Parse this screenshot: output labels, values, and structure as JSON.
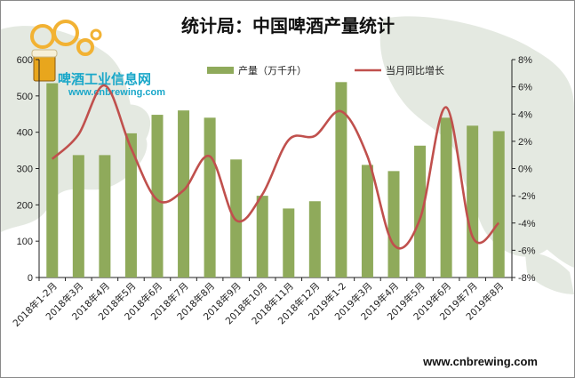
{
  "title": "统计局：中国啤酒产量统计",
  "logo": {
    "cn": "啤酒工业信息网",
    "en": "www.cnbrewing.com"
  },
  "website": "www.cnbrewing.com",
  "colors": {
    "bar": "#8faa5b",
    "line": "#c0504d",
    "map": "#e4e9e1"
  },
  "chart_data": {
    "type": "bar",
    "categories": [
      "2018年1-2月",
      "2018年3月",
      "2018年4月",
      "2018年5月",
      "2018年6月",
      "2018年7月",
      "2018年8月",
      "2018年9月",
      "2018年10月",
      "2018年11月",
      "2018年12月",
      "2019年1-2",
      "2019年3月",
      "2019年4月",
      "2019年5月",
      "2019年6月",
      "2019年7月",
      "2019年8月"
    ],
    "series": [
      {
        "name": "产量（万千升）",
        "type": "bar",
        "axis": "left",
        "values": [
          535,
          337,
          337,
          397,
          448,
          460,
          440,
          325,
          225,
          190,
          210,
          538,
          310,
          293,
          363,
          440,
          418,
          403
        ]
      },
      {
        "name": "当月同比增长",
        "type": "line",
        "axis": "right",
        "values": [
          0.7,
          2.5,
          6.1,
          1.5,
          -2.3,
          -1.6,
          0.9,
          -3.8,
          -1.9,
          2.1,
          2.4,
          4.2,
          0.9,
          -5.6,
          -3.7,
          4.5,
          -5.0,
          -4.0
        ]
      }
    ],
    "y_left": {
      "min": 0,
      "max": 600,
      "ticks": [
        "0",
        "100",
        "200",
        "300",
        "400",
        "500",
        "600"
      ]
    },
    "y_right": {
      "min": -8,
      "max": 8,
      "ticks": [
        "-8%",
        "-6%",
        "-4%",
        "-2%",
        "0%",
        "2%",
        "4%",
        "6%",
        "8%"
      ]
    },
    "legend_placement": "top",
    "grid": false
  }
}
